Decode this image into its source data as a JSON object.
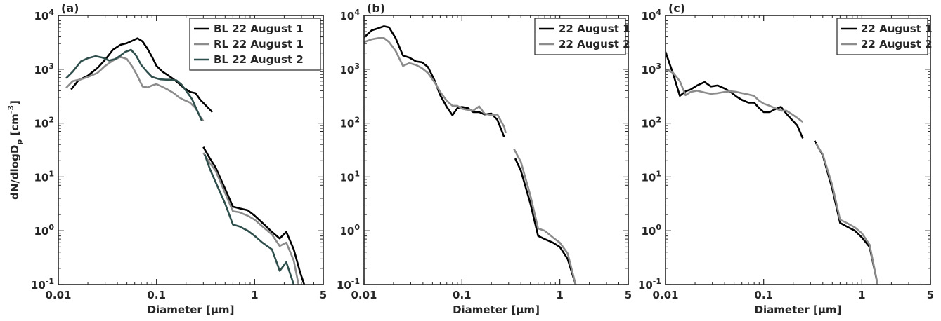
{
  "chart_data": [
    {
      "type": "line",
      "panel_label": "(a)",
      "xlabel": "Diameter [μm]",
      "ylabel": "dN/dlogD_p [cm^-3]",
      "xscale": "log",
      "yscale": "log",
      "xlim": [
        0.01,
        5
      ],
      "ylim": [
        0.1,
        10000
      ],
      "xticks": [
        {
          "v": 0.01,
          "label": "0.01"
        },
        {
          "v": 0.1,
          "label": "0.1"
        },
        {
          "v": 1,
          "label": "1"
        },
        {
          "v": 5,
          "label": "5"
        }
      ],
      "yticks": [
        {
          "v": 0.1,
          "exp": "-1"
        },
        {
          "v": 1,
          "exp": "0"
        },
        {
          "v": 10,
          "exp": "1"
        },
        {
          "v": 100,
          "exp": "2"
        },
        {
          "v": 1000,
          "exp": "3"
        },
        {
          "v": 10000,
          "exp": "4"
        }
      ],
      "legend_position": "top-right",
      "series": [
        {
          "name": "BL 22 August 1",
          "color": "#000000",
          "x": [
            0.0135,
            0.016,
            0.02,
            0.025,
            0.03,
            0.036,
            0.043,
            0.05,
            0.057,
            0.064,
            0.072,
            0.081,
            0.09,
            0.1,
            0.115,
            0.13,
            0.15,
            0.17,
            0.19,
            0.22,
            0.25,
            0.28,
            0.37,
            null,
            0.3,
            0.35,
            0.4,
            0.5,
            0.6,
            0.7,
            0.85,
            1.0,
            1.2,
            1.5,
            1.8,
            2.1,
            2.5,
            2.9,
            3.2
          ],
          "y": [
            420,
            620,
            760,
            1050,
            1500,
            2300,
            2850,
            3050,
            3400,
            3750,
            3300,
            2400,
            1700,
            1150,
            900,
            780,
            650,
            540,
            450,
            380,
            360,
            270,
            160,
            null,
            36,
            22,
            15,
            6,
            2.8,
            2.6,
            2.4,
            1.9,
            1.4,
            0.95,
            0.72,
            0.95,
            0.45,
            0.17,
            0.1
          ]
        },
        {
          "name": "RL 22 August 1",
          "color": "#8c8c8c",
          "x": [
            0.012,
            0.014,
            0.017,
            0.02,
            0.025,
            0.03,
            0.036,
            0.043,
            0.05,
            0.057,
            0.064,
            0.072,
            0.081,
            0.09,
            0.1,
            0.115,
            0.13,
            0.15,
            0.17,
            0.19,
            0.22,
            0.25,
            0.28,
            0.3,
            null,
            0.3,
            0.35,
            0.4,
            0.5,
            0.6,
            0.7,
            0.85,
            1.0,
            1.2,
            1.5,
            1.8,
            2.1,
            2.5,
            2.8
          ],
          "y": [
            450,
            600,
            650,
            720,
            850,
            1150,
            1450,
            1700,
            1550,
            1100,
            750,
            480,
            460,
            500,
            530,
            470,
            420,
            360,
            300,
            270,
            240,
            190,
            130,
            110,
            null,
            28,
            18,
            13,
            5,
            2.3,
            2.2,
            1.9,
            1.6,
            1.2,
            0.85,
            0.52,
            0.6,
            0.28,
            0.1
          ]
        },
        {
          "name": "BL 22 August 2",
          "color": "#2f4f4c",
          "x": [
            0.012,
            0.014,
            0.017,
            0.02,
            0.024,
            0.028,
            0.033,
            0.038,
            0.043,
            0.048,
            0.055,
            0.062,
            0.07,
            0.08,
            0.09,
            0.1,
            0.11,
            0.125,
            0.14,
            0.16,
            0.18,
            0.2,
            0.23,
            0.26,
            0.29,
            null,
            0.31,
            0.35,
            0.4,
            0.5,
            0.6,
            0.7,
            0.85,
            1.0,
            1.2,
            1.5,
            1.8,
            2.1,
            2.5
          ],
          "y": [
            680,
            900,
            1400,
            1600,
            1750,
            1650,
            1450,
            1550,
            1800,
            2100,
            2300,
            1800,
            1200,
            900,
            720,
            680,
            650,
            640,
            640,
            620,
            520,
            400,
            280,
            170,
            110,
            null,
            26,
            14,
            8,
            3.2,
            1.3,
            1.2,
            1.0,
            0.8,
            0.6,
            0.45,
            0.18,
            0.26,
            0.1
          ]
        }
      ]
    },
    {
      "type": "line",
      "panel_label": "(b)",
      "xlabel": "Diameter [μm]",
      "ylabel": "",
      "xscale": "log",
      "yscale": "log",
      "xlim": [
        0.01,
        5
      ],
      "ylim": [
        0.1,
        10000
      ],
      "xticks": [
        {
          "v": 0.01,
          "label": "0.01"
        },
        {
          "v": 0.1,
          "label": "0.1"
        },
        {
          "v": 1,
          "label": "1"
        },
        {
          "v": 5,
          "label": "5"
        }
      ],
      "yticks": [
        {
          "v": 0.1,
          "exp": "-1"
        },
        {
          "v": 1,
          "exp": "0"
        },
        {
          "v": 10,
          "exp": "1"
        },
        {
          "v": 100,
          "exp": "2"
        },
        {
          "v": 1000,
          "exp": "3"
        },
        {
          "v": 10000,
          "exp": "4"
        }
      ],
      "legend_position": "top-right",
      "series": [
        {
          "name": "22 August 1",
          "color": "#000000",
          "x": [
            0.01,
            0.012,
            0.014,
            0.016,
            0.018,
            0.021,
            0.025,
            0.029,
            0.034,
            0.039,
            0.045,
            0.053,
            0.06,
            0.07,
            0.08,
            0.09,
            0.1,
            0.115,
            0.13,
            0.15,
            0.17,
            0.2,
            0.23,
            0.27,
            null,
            0.35,
            0.4,
            0.5,
            0.6,
            0.7,
            0.85,
            1.0,
            1.2,
            1.45
          ],
          "y": [
            3900,
            5300,
            5800,
            6300,
            6000,
            3800,
            1800,
            1650,
            1400,
            1350,
            1100,
            600,
            330,
            200,
            140,
            190,
            200,
            190,
            160,
            160,
            145,
            150,
            115,
            55,
            null,
            22,
            13,
            3.2,
            0.8,
            0.7,
            0.6,
            0.5,
            0.3,
            0.1
          ]
        },
        {
          "name": "22 August 2",
          "color": "#8c8c8c",
          "x": [
            0.01,
            0.012,
            0.014,
            0.016,
            0.018,
            0.021,
            0.025,
            0.029,
            0.034,
            0.039,
            0.045,
            0.053,
            0.06,
            0.07,
            0.08,
            0.09,
            0.1,
            0.115,
            0.13,
            0.15,
            0.17,
            0.2,
            0.23,
            0.27,
            0.28,
            null,
            0.34,
            0.4,
            0.5,
            0.6,
            0.7,
            0.85,
            1.0,
            1.2,
            1.45
          ],
          "y": [
            3200,
            3600,
            3800,
            3800,
            3200,
            2200,
            1150,
            1300,
            1200,
            1050,
            850,
            560,
            380,
            260,
            210,
            210,
            185,
            175,
            170,
            205,
            150,
            140,
            145,
            85,
            65,
            null,
            33,
            19,
            4.5,
            1.1,
            1.0,
            0.75,
            0.6,
            0.38,
            0.1
          ]
        }
      ]
    },
    {
      "type": "line",
      "panel_label": "(c)",
      "xlabel": "Diameter [μm]",
      "ylabel": "",
      "xscale": "log",
      "yscale": "log",
      "xlim": [
        0.01,
        5
      ],
      "ylim": [
        0.1,
        10000
      ],
      "xticks": [
        {
          "v": 0.01,
          "label": "0.01"
        },
        {
          "v": 0.1,
          "label": "0.1"
        },
        {
          "v": 1,
          "label": "1"
        },
        {
          "v": 5,
          "label": "5"
        }
      ],
      "yticks": [
        {
          "v": 0.1,
          "exp": "-1"
        },
        {
          "v": 1,
          "exp": "0"
        },
        {
          "v": 10,
          "exp": "1"
        },
        {
          "v": 100,
          "exp": "2"
        },
        {
          "v": 1000,
          "exp": "3"
        },
        {
          "v": 10000,
          "exp": "4"
        }
      ],
      "legend_position": "top-right",
      "series": [
        {
          "name": "22 August 1",
          "color": "#000000",
          "x": [
            0.01,
            0.012,
            0.014,
            0.016,
            0.018,
            0.021,
            0.025,
            0.029,
            0.034,
            0.04,
            0.046,
            0.053,
            0.06,
            0.07,
            0.08,
            0.09,
            0.1,
            0.115,
            0.13,
            0.15,
            0.17,
            0.19,
            0.22,
            0.25,
            null,
            0.33,
            0.4,
            0.5,
            0.6,
            0.7,
            0.85,
            1.0,
            1.2,
            1.45
          ],
          "y": [
            2100,
            800,
            320,
            390,
            420,
            500,
            580,
            480,
            500,
            440,
            380,
            310,
            270,
            240,
            240,
            190,
            160,
            160,
            180,
            200,
            150,
            120,
            90,
            52,
            null,
            47,
            25,
            6,
            1.4,
            1.2,
            1.0,
            0.75,
            0.5,
            0.1
          ]
        },
        {
          "name": "22 August 2",
          "color": "#8c8c8c",
          "x": [
            0.01,
            0.012,
            0.014,
            0.016,
            0.018,
            0.021,
            0.025,
            0.029,
            0.034,
            0.04,
            0.046,
            0.053,
            0.06,
            0.07,
            0.08,
            0.09,
            0.1,
            0.115,
            0.13,
            0.15,
            0.17,
            0.19,
            0.22,
            0.25,
            null,
            0.34,
            0.4,
            0.5,
            0.6,
            0.7,
            0.85,
            1.0,
            1.2,
            1.45
          ],
          "y": [
            1000,
            850,
            600,
            330,
            380,
            400,
            370,
            350,
            360,
            380,
            390,
            380,
            360,
            340,
            320,
            260,
            230,
            210,
            190,
            170,
            170,
            150,
            125,
            105,
            null,
            42,
            26,
            7,
            1.6,
            1.4,
            1.15,
            0.9,
            0.55,
            0.1
          ]
        }
      ]
    }
  ]
}
